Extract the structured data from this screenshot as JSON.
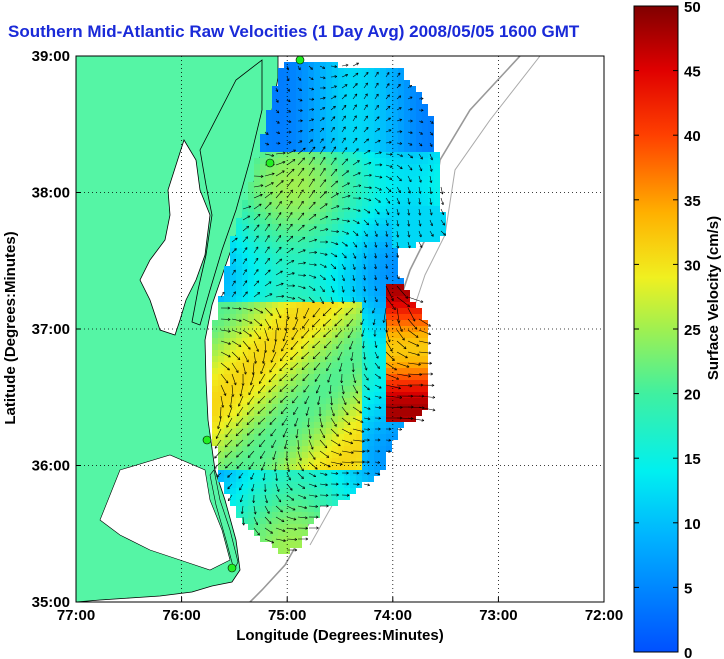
{
  "title": "Southern Mid-Atlantic Raw Velocities (1 Day Avg) 2008/05/05 1600 GMT",
  "x_axis": {
    "label": "Longitude (Degrees:Minutes)",
    "ticks": [
      "77:00",
      "76:00",
      "75:00",
      "74:00",
      "73:00",
      "72:00"
    ]
  },
  "y_axis": {
    "label": "Latitude (Degrees:Minutes)",
    "ticks": [
      "39:00",
      "38:00",
      "37:00",
      "36:00",
      "35:00"
    ]
  },
  "colorbar": {
    "label": "Surface Velocity (cm/s)",
    "ticks": [
      "50",
      "45",
      "40",
      "35",
      "30",
      "25",
      "20",
      "15",
      "10",
      "5",
      "0"
    ],
    "min": 0,
    "max": 50
  },
  "colors": {
    "title": "#1a2ad8",
    "land": "#55f5a5",
    "water": "#ffffff",
    "coast_outline": "#000000",
    "bathymetry": "#999999",
    "station": "#22ee22",
    "arrow": "#000000"
  },
  "grid": "dotted",
  "map_extent": {
    "lon": [
      -77,
      -72
    ],
    "lat": [
      35,
      39
    ]
  }
}
